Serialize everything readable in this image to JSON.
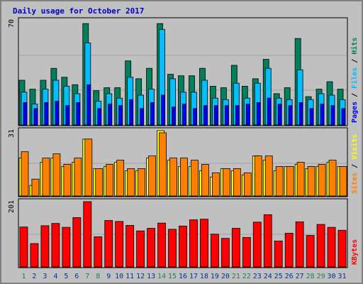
{
  "chart_data": {
    "type": "bar",
    "title": "Daily usage for October 2017",
    "x": [
      "1",
      "2",
      "3",
      "4",
      "5",
      "6",
      "7",
      "8",
      "9",
      "10",
      "11",
      "12",
      "13",
      "14",
      "15",
      "16",
      "17",
      "18",
      "19",
      "20",
      "21",
      "22",
      "23",
      "24",
      "25",
      "26",
      "27",
      "28",
      "29",
      "30",
      "31"
    ],
    "weekend_days": [
      "1",
      "7",
      "8",
      "14",
      "15",
      "21",
      "22",
      "28",
      "29"
    ],
    "panels": [
      {
        "name": "pages-files-hits",
        "ymax_label": "70",
        "ymax": 70,
        "right_labels": [
          "Pages",
          "Files",
          "Hits"
        ],
        "series": [
          {
            "name": "Hits",
            "color": "#00805c",
            "values": [
              30,
              24,
              30,
              38,
              32,
              27,
              68,
              23,
              25,
              25,
              43,
              31,
              38,
              68,
              34,
              33,
              33,
              38,
              26,
              25,
              40,
              26,
              31,
              44,
              21,
              25,
              58,
              19,
              24,
              29,
              24
            ]
          },
          {
            "name": "Files",
            "color": "#00bfff",
            "values": [
              22,
              14,
              24,
              30,
              26,
              21,
              55,
              16,
              21,
              18,
              32,
              20,
              24,
              64,
              31,
              22,
              22,
              30,
              18,
              17,
              28,
              18,
              28,
              38,
              18,
              17,
              37,
              17,
              21,
              20,
              17
            ]
          },
          {
            "name": "Pages",
            "color": "#0000ff",
            "values": [
              15,
              11,
              15,
              16,
              13,
              15,
              27,
              11,
              14,
              13,
              17,
              11,
              15,
              20,
              12,
              14,
              11,
              13,
              13,
              13,
              13,
              14,
              15,
              18,
              14,
              13,
              15,
              11,
              14,
              13,
              11
            ]
          }
        ]
      },
      {
        "name": "sites-visits",
        "ymax_label": "31",
        "ymax": 31,
        "right_labels": [
          "Sites",
          "Visits"
        ],
        "series": [
          {
            "name": "Visits",
            "color": "#ffff00",
            "values": [
              18,
              5,
              16,
              18,
              14,
              16,
              27,
              13,
              14,
              16,
              12,
              12,
              18,
              31,
              17,
              14,
              14,
              12,
              9,
              13,
              12,
              10,
              19,
              17,
              12,
              14,
              15,
              13,
              14,
              16,
              14
            ]
          },
          {
            "name": "Sites",
            "color": "#ff8000",
            "values": [
              21,
              8,
              18,
              20,
              15,
              18,
              27,
              13,
              15,
              17,
              13,
              13,
              19,
              30,
              18,
              18,
              17,
              15,
              11,
              13,
              13,
              11,
              19,
              19,
              14,
              14,
              16,
              14,
              15,
              17,
              14
            ]
          }
        ]
      },
      {
        "name": "kbytes",
        "ymax_label": "201",
        "ymax": 201,
        "right_labels": [
          "KBytes"
        ],
        "series": [
          {
            "name": "KBytes",
            "color": "#ff0000",
            "values": [
              123,
              72,
              127,
              134,
              122,
              152,
              201,
              93,
              143,
              140,
              128,
              111,
              119,
              135,
              116,
              126,
              145,
              147,
              101,
              88,
              119,
              91,
              138,
              161,
              80,
              104,
              139,
              97,
              131,
              122,
              113
            ]
          }
        ]
      }
    ],
    "colors": {
      "background": "#c0c0c0",
      "outer_border": "#808080",
      "title": "#0000cc",
      "gridline": "#a0a0a0",
      "weekday_label": "#003399",
      "weekend_label": "#1f8060"
    }
  }
}
